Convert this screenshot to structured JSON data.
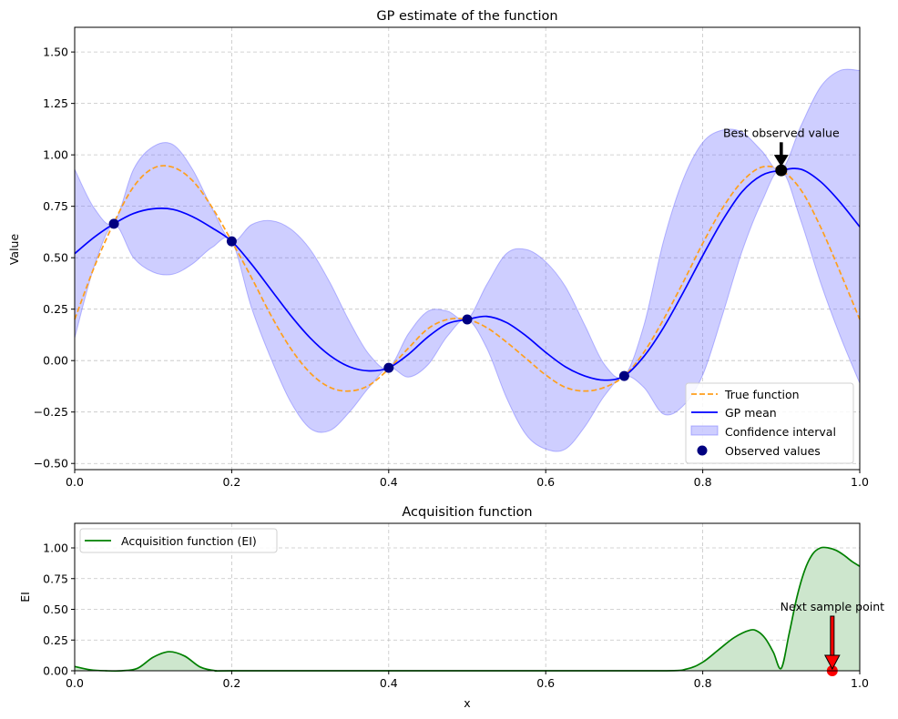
{
  "chart_data": [
    {
      "type": "line",
      "title": "GP estimate of the function",
      "xlabel": "",
      "ylabel": "Value",
      "xlim": [
        0,
        1
      ],
      "ylim": [
        -0.53,
        1.62
      ],
      "xticks": [
        0,
        0.2,
        0.4,
        0.6,
        0.8,
        1.0
      ],
      "xtick_labels": [
        "0.0",
        "0.2",
        "0.4",
        "0.6",
        "0.8",
        "1.0"
      ],
      "yticks": [
        -0.5,
        -0.25,
        0,
        0.25,
        0.5,
        0.75,
        1.0,
        1.25,
        1.5
      ],
      "ytick_labels": [
        "−0.50",
        "−0.25",
        "0.00",
        "0.25",
        "0.50",
        "0.75",
        "1.00",
        "1.25",
        "1.50"
      ],
      "grid": true,
      "legend_position": "lower-right",
      "series": [
        {
          "name": "True function",
          "style": "dashed",
          "color": "#ff9f1c",
          "x": [
            0,
            0.025,
            0.05,
            0.075,
            0.1,
            0.125,
            0.15,
            0.175,
            0.2,
            0.225,
            0.25,
            0.275,
            0.3,
            0.325,
            0.35,
            0.375,
            0.4,
            0.425,
            0.45,
            0.475,
            0.5,
            0.525,
            0.55,
            0.575,
            0.6,
            0.625,
            0.65,
            0.675,
            0.7,
            0.725,
            0.75,
            0.775,
            0.8,
            0.825,
            0.85,
            0.875,
            0.9,
            0.925,
            0.95,
            0.975,
            1.0
          ],
          "y": [
            0.2,
            0.455,
            0.67,
            0.845,
            0.935,
            0.94,
            0.875,
            0.745,
            0.58,
            0.405,
            0.22,
            0.06,
            -0.06,
            -0.13,
            -0.148,
            -0.12,
            -0.04,
            0.06,
            0.155,
            0.2,
            0.2,
            0.16,
            0.09,
            0.01,
            -0.07,
            -0.13,
            -0.148,
            -0.13,
            -0.075,
            0.04,
            0.2,
            0.38,
            0.57,
            0.74,
            0.87,
            0.94,
            0.925,
            0.83,
            0.65,
            0.43,
            0.2
          ]
        },
        {
          "name": "GP mean",
          "style": "solid",
          "color": "#0000ff",
          "x": [
            0,
            0.025,
            0.05,
            0.075,
            0.1,
            0.125,
            0.15,
            0.175,
            0.2,
            0.225,
            0.25,
            0.275,
            0.3,
            0.325,
            0.35,
            0.375,
            0.4,
            0.425,
            0.45,
            0.475,
            0.5,
            0.525,
            0.55,
            0.575,
            0.6,
            0.625,
            0.65,
            0.675,
            0.7,
            0.725,
            0.75,
            0.775,
            0.8,
            0.825,
            0.85,
            0.875,
            0.9,
            0.925,
            0.95,
            0.975,
            1.0
          ],
          "y": [
            0.52,
            0.6,
            0.665,
            0.715,
            0.738,
            0.735,
            0.7,
            0.645,
            0.58,
            0.47,
            0.345,
            0.22,
            0.11,
            0.025,
            -0.03,
            -0.05,
            -0.035,
            0.03,
            0.115,
            0.18,
            0.2,
            0.215,
            0.185,
            0.12,
            0.04,
            -0.03,
            -0.075,
            -0.095,
            -0.075,
            0.02,
            0.16,
            0.33,
            0.51,
            0.68,
            0.82,
            0.9,
            0.925,
            0.93,
            0.87,
            0.77,
            0.65
          ]
        }
      ],
      "confidence_interval": {
        "name": "Confidence interval",
        "color": "#6b6bff",
        "x": [
          0,
          0.025,
          0.05,
          0.075,
          0.1,
          0.125,
          0.15,
          0.175,
          0.2,
          0.225,
          0.25,
          0.275,
          0.3,
          0.325,
          0.35,
          0.375,
          0.4,
          0.425,
          0.45,
          0.475,
          0.5,
          0.525,
          0.55,
          0.575,
          0.6,
          0.625,
          0.65,
          0.675,
          0.7,
          0.725,
          0.75,
          0.775,
          0.8,
          0.825,
          0.85,
          0.875,
          0.9,
          0.925,
          0.95,
          0.975,
          1.0
        ],
        "lower": [
          0.11,
          0.46,
          0.66,
          0.5,
          0.43,
          0.42,
          0.47,
          0.55,
          0.58,
          0.26,
          0.01,
          -0.2,
          -0.33,
          -0.34,
          -0.25,
          -0.13,
          -0.035,
          -0.08,
          -0.02,
          0.12,
          0.2,
          0.06,
          -0.18,
          -0.36,
          -0.43,
          -0.43,
          -0.32,
          -0.17,
          -0.075,
          -0.13,
          -0.26,
          -0.22,
          -0.07,
          0.22,
          0.53,
          0.77,
          0.925,
          0.68,
          0.38,
          0.12,
          -0.11
        ],
        "upper": [
          0.93,
          0.74,
          0.67,
          0.93,
          1.04,
          1.05,
          0.93,
          0.74,
          0.58,
          0.66,
          0.68,
          0.64,
          0.54,
          0.38,
          0.19,
          0.03,
          -0.035,
          0.13,
          0.24,
          0.24,
          0.2,
          0.37,
          0.52,
          0.54,
          0.48,
          0.36,
          0.17,
          -0.02,
          -0.075,
          0.17,
          0.58,
          0.88,
          1.06,
          1.12,
          1.11,
          1.02,
          0.925,
          1.14,
          1.33,
          1.41,
          1.41
        ]
      },
      "observed": {
        "name": "Observed values",
        "color": "#000080",
        "x": [
          0.05,
          0.2,
          0.4,
          0.5,
          0.7,
          0.9
        ],
        "y": [
          0.665,
          0.58,
          -0.035,
          0.2,
          -0.075,
          0.925
        ]
      },
      "best_point": {
        "x": 0.9,
        "y": 0.925,
        "color": "#000000"
      },
      "annotation": {
        "text": "Best observed value",
        "x": 0.9,
        "y": 0.925,
        "text_y": 1.07
      },
      "legend_title": ""
    },
    {
      "type": "area",
      "title": "Acquisition function",
      "xlabel": "x",
      "ylabel": "EI",
      "xlim": [
        0,
        1
      ],
      "ylim": [
        0,
        1.2
      ],
      "xticks": [
        0,
        0.2,
        0.4,
        0.6,
        0.8,
        1.0
      ],
      "xtick_labels": [
        "0.0",
        "0.2",
        "0.4",
        "0.6",
        "0.8",
        "1.0"
      ],
      "yticks": [
        0,
        0.25,
        0.5,
        0.75,
        1.0
      ],
      "ytick_labels": [
        "0.00",
        "0.25",
        "0.50",
        "0.75",
        "1.00"
      ],
      "grid": true,
      "legend_position": "upper-left",
      "series": [
        {
          "name": "Acquisition function (EI)",
          "color": "#008000",
          "fill_color": "#cde6cd",
          "x": [
            0,
            0.02,
            0.04,
            0.06,
            0.08,
            0.1,
            0.12,
            0.14,
            0.16,
            0.18,
            0.2,
            0.4,
            0.6,
            0.75,
            0.78,
            0.8,
            0.82,
            0.84,
            0.86,
            0.87,
            0.88,
            0.89,
            0.9,
            0.91,
            0.92,
            0.93,
            0.94,
            0.95,
            0.96,
            0.97,
            0.98,
            0.99,
            1.0
          ],
          "y": [
            0.035,
            0.008,
            0.0,
            0.0,
            0.02,
            0.11,
            0.155,
            0.12,
            0.03,
            0.0,
            0.0,
            0.0,
            0.0,
            0.0,
            0.015,
            0.07,
            0.17,
            0.27,
            0.33,
            0.32,
            0.26,
            0.15,
            0.02,
            0.3,
            0.6,
            0.82,
            0.95,
            1.0,
            1.0,
            0.98,
            0.94,
            0.89,
            0.85
          ]
        }
      ],
      "next_point": {
        "x": 0.965,
        "y": 0.0,
        "color": "#ff0000"
      },
      "annotation": {
        "text": "Next sample point",
        "x": 0.965,
        "y": 0.0,
        "text_y": 0.4
      }
    }
  ]
}
